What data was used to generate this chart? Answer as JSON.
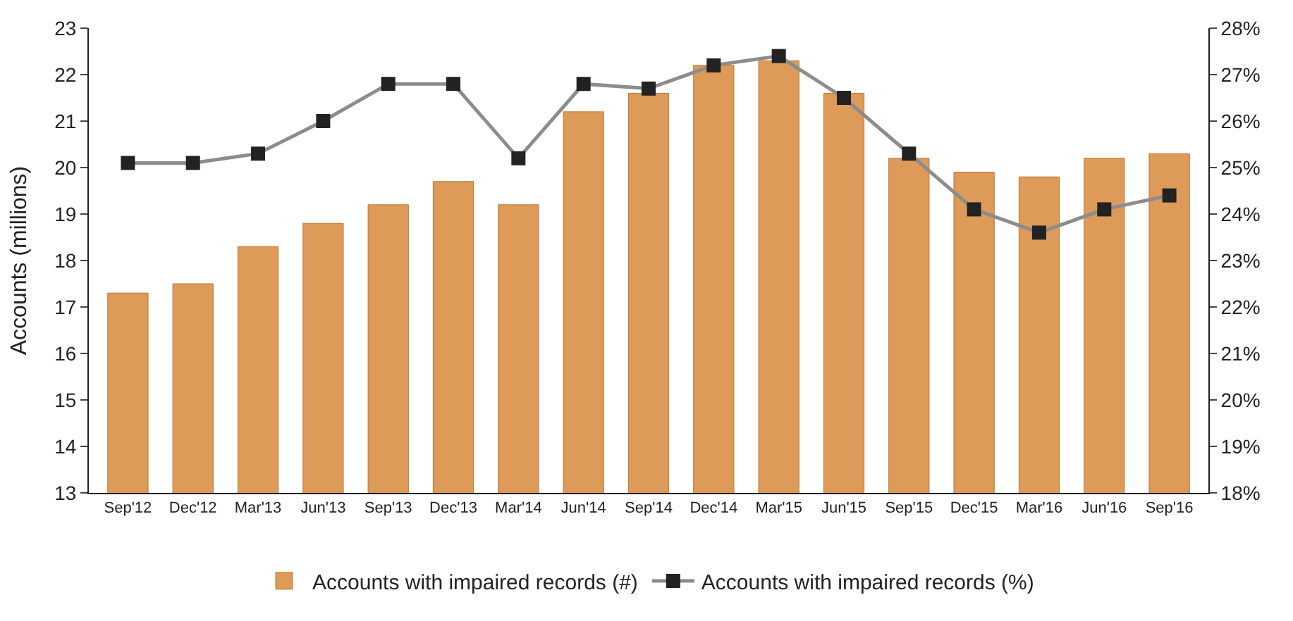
{
  "chart_data": {
    "type": "bar",
    "ylabel": "Accounts (millions)",
    "categories": [
      "Sep'12",
      "Dec'12",
      "Mar'13",
      "Jun'13",
      "Sep'13",
      "Dec'13",
      "Mar'14",
      "Jun'14",
      "Sep'14",
      "Dec'14",
      "Mar'15",
      "Jun'15",
      "Sep'15",
      "Dec'15",
      "Mar'16",
      "Jun'16",
      "Sep'16"
    ],
    "series": [
      {
        "name": "Accounts with impaired records (#)",
        "color": "#dd9a58",
        "values": [
          17.3,
          17.5,
          18.3,
          18.8,
          19.2,
          19.7,
          19.2,
          21.2,
          21.6,
          22.2,
          22.3,
          21.6,
          20.2,
          19.9,
          19.8,
          20.2,
          20.3
        ]
      },
      {
        "name": "Accounts with impaired records (%)",
        "type": "line",
        "axis": "y2",
        "color": "#8c8c8c",
        "marker": "square",
        "values": [
          25.1,
          25.1,
          25.3,
          26.0,
          26.8,
          26.8,
          25.2,
          26.8,
          26.7,
          27.2,
          27.4,
          26.5,
          25.3,
          24.1,
          23.6,
          24.1,
          24.4
        ]
      }
    ],
    "ylim": [
      13,
      23
    ],
    "yticks": [
      13,
      14,
      15,
      16,
      17,
      18,
      19,
      20,
      21,
      22,
      23
    ],
    "y2lim": [
      18,
      28
    ],
    "y2ticks": [
      {
        "value": 18,
        "label": "18%"
      },
      {
        "value": 19,
        "label": "19%"
      },
      {
        "value": 20,
        "label": "20%"
      },
      {
        "value": 21,
        "label": "21%"
      },
      {
        "value": 22,
        "label": "22%"
      },
      {
        "value": 23,
        "label": "23%"
      },
      {
        "value": 24,
        "label": "24%"
      },
      {
        "value": 25,
        "label": "25%"
      },
      {
        "value": 26,
        "label": "26%"
      },
      {
        "value": 27,
        "label": "27%"
      },
      {
        "value": 28,
        "label": "28%"
      }
    ],
    "legend": "bottom"
  }
}
